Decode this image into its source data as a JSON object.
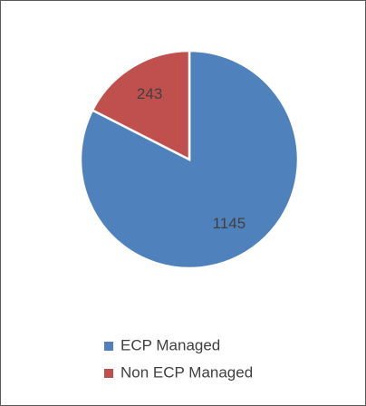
{
  "chart_data": {
    "type": "pie",
    "categories": [
      "ECP Managed",
      "Non ECP Managed"
    ],
    "values": [
      1145,
      243
    ],
    "colors": [
      "#4f81bd",
      "#c0504d"
    ],
    "legend": "bottom"
  }
}
